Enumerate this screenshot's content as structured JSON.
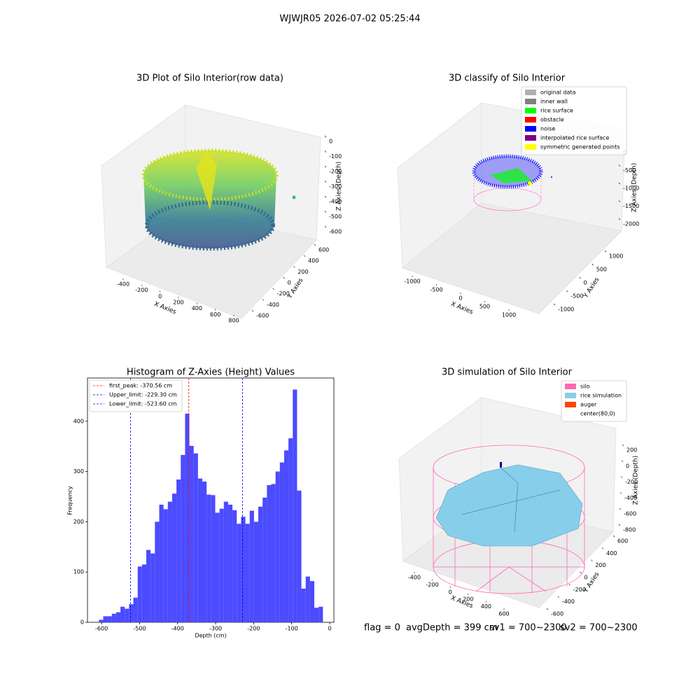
{
  "title": "WJWJR05 2026-07-02 05:25:44",
  "footer": [
    "flag = 0",
    "avgDepth = 399 cm",
    "sv1 = 700~2300",
    "sv2 = 700~2300"
  ],
  "chart_data": [
    {
      "type": "scatter3d",
      "title": "3D Plot of Silo Interior(row data)",
      "xlabel": "X Axies",
      "ylabel": "Y Axies",
      "zlabel": "Z Axies (Depth)",
      "xticks": [
        -400,
        -200,
        0,
        200,
        400,
        600,
        800
      ],
      "yticks": [
        -600,
        -400,
        -200,
        0,
        200,
        400,
        600
      ],
      "zticks": [
        0,
        -100,
        -200,
        -300,
        -400,
        -500,
        -600
      ]
    },
    {
      "type": "scatter3d",
      "title": "3D classify of Silo Interior",
      "xlabel": "X Axies",
      "ylabel": "Y Axies",
      "zlabel": "Z Axies (Depth)",
      "xticks": [
        -1000,
        -500,
        0,
        500,
        1000
      ],
      "yticks": [
        -1000,
        -500,
        0,
        500,
        1000
      ],
      "zticks": [
        0,
        -500,
        -1000,
        -1500,
        -2000
      ],
      "series": [
        {
          "name": "original data",
          "color": "#b0b0b0"
        },
        {
          "name": "inner wall",
          "color": "#808080"
        },
        {
          "name": "rice surface",
          "color": "#00ff00"
        },
        {
          "name": "obstacle",
          "color": "#ff0000"
        },
        {
          "name": "noise",
          "color": "#0000ff"
        },
        {
          "name": "interpolated rice surface",
          "color": "#800080"
        },
        {
          "name": "symmetric generated points",
          "color": "#ffff00"
        }
      ]
    },
    {
      "type": "histogram",
      "title": "Histogram of Z-Axies (Height) Values",
      "xlabel": "Depth (cm)",
      "ylabel": "Frequency",
      "color": "#4b4bff",
      "bins": [
        -607,
        -595.67,
        -584.34,
        -573.01,
        -561.68,
        -550.35,
        -539.02,
        -527.69,
        -516.36,
        -505.03,
        -493.7,
        -482.37,
        -471.04,
        -459.71,
        -448.38,
        -437.05,
        -425.72,
        -414.39,
        -403.06,
        -391.73,
        -380.4,
        -369.07,
        -357.74,
        -346.41,
        -335.08,
        -323.75,
        -312.42,
        -301.09,
        -289.76,
        -278.43,
        -267.1,
        -255.77,
        -244.44,
        -233.11,
        -221.78,
        -210.45,
        -199.12,
        -187.79,
        -176.46,
        -165.13,
        -153.8,
        -142.47,
        -131.14,
        -119.81,
        -108.48,
        -97.15,
        -85.82,
        -74.49,
        -63.16,
        -51.83,
        -40.5,
        -29.17,
        -17.84
      ],
      "values": [
        5,
        12,
        12,
        17,
        20,
        31,
        27,
        36,
        49,
        111,
        115,
        144,
        137,
        200,
        234,
        225,
        240,
        256,
        284,
        333,
        415,
        351,
        336,
        286,
        280,
        254,
        253,
        218,
        226,
        240,
        234,
        223,
        196,
        210,
        196,
        222,
        200,
        230,
        248,
        273,
        275,
        300,
        318,
        342,
        366,
        463,
        262,
        67,
        91,
        82,
        29,
        31
      ],
      "lines": [
        {
          "name": "first_peak: -370.56 cm",
          "value": -370.56,
          "color": "#ff0000"
        },
        {
          "name": "Upper_limit: -229.30 cm",
          "value": -229.3,
          "color": "#0000ff"
        },
        {
          "name": "Lower_limit: -523.60 cm",
          "value": -523.6,
          "color": "#0000ff"
        }
      ],
      "xlim": [
        -637,
        11
      ],
      "ylim": [
        0,
        486
      ],
      "xticks": [
        -600,
        -500,
        -400,
        -300,
        -200,
        -100,
        0
      ],
      "yticks": [
        0,
        100,
        200,
        300,
        400
      ]
    },
    {
      "type": "surface3d",
      "title": "3D simulation of Silo Interior",
      "xlabel": "X Axies",
      "ylabel": "Y Axies",
      "zlabel": "Z Axies (Depth)",
      "xticks": [
        -400,
        -200,
        0,
        200,
        400,
        600
      ],
      "yticks": [
        -600,
        -400,
        -200,
        0,
        200,
        400,
        600
      ],
      "zticks": [
        200,
        0,
        -200,
        -400,
        -600,
        -800
      ],
      "series": [
        {
          "name": "silo",
          "color": "#ff69b4"
        },
        {
          "name": "rice simulation",
          "color": "#87ceeb"
        },
        {
          "name": "auger",
          "color": "#ff4500"
        },
        {
          "name": "center(80,0)"
        }
      ]
    }
  ]
}
